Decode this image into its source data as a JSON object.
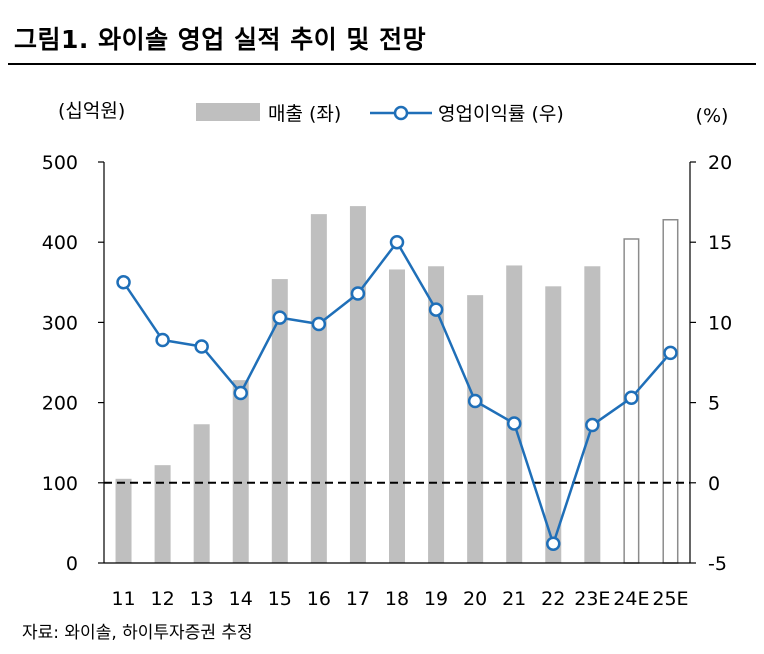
{
  "title": "그림1. 와이솔 영업 실적 추이 및 전망",
  "source": "자료: 와이솔, 하이투자증권 추정",
  "chart_data": {
    "type": "bar+line",
    "categories": [
      "11",
      "12",
      "13",
      "14",
      "15",
      "16",
      "17",
      "18",
      "19",
      "20",
      "21",
      "22",
      "23E",
      "24E",
      "25E"
    ],
    "left_axis": {
      "unit": "(십억원)",
      "ylim": [
        0,
        500
      ],
      "ticks": [
        0,
        100,
        200,
        300,
        400,
        500
      ]
    },
    "right_axis": {
      "unit": "(%)",
      "ylim": [
        -5,
        20
      ],
      "ticks": [
        -5,
        0,
        5,
        10,
        15,
        20
      ]
    },
    "series": [
      {
        "name": "매출 (좌)",
        "type": "bar",
        "axis": "left",
        "color": "#bfbfbf",
        "values": [
          105,
          122,
          173,
          228,
          354,
          435,
          445,
          366,
          370,
          334,
          371,
          345,
          370,
          404,
          428
        ],
        "hollow": [
          false,
          false,
          false,
          false,
          false,
          false,
          false,
          false,
          false,
          false,
          false,
          false,
          false,
          true,
          true
        ]
      },
      {
        "name": "영업이익률 (우)",
        "type": "line",
        "axis": "right",
        "color": "#1f6fb8",
        "values": [
          12.5,
          8.9,
          8.5,
          5.6,
          10.3,
          9.9,
          11.8,
          15.0,
          10.8,
          5.1,
          3.7,
          -3.8,
          3.6,
          5.3,
          8.1
        ]
      }
    ],
    "reference_line": {
      "axis": "right",
      "value": 0,
      "style": "dashed"
    },
    "grid": false,
    "legend": "top-center"
  }
}
